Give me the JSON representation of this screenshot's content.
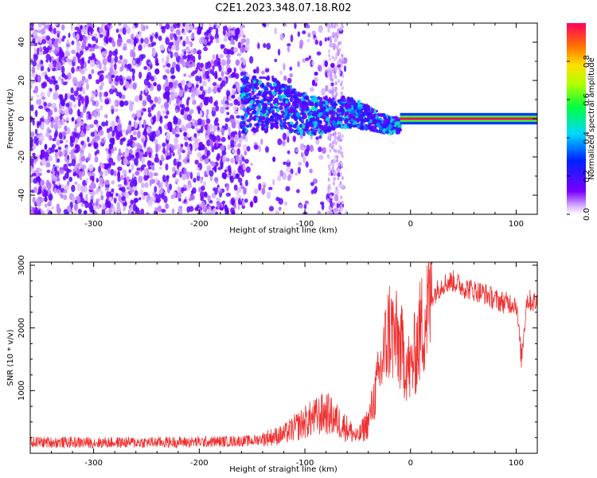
{
  "figure_title": "C2E1.2023.348.07.18.R02",
  "colors": {
    "spectrogram_low": "#7a00ff",
    "trace": "#ef2f2f",
    "axes": "#000000"
  },
  "chart_data": [
    {
      "type": "heatmap",
      "xlabel": "Height of straight line (km)",
      "ylabel": "Frequency (Hz)",
      "xlim": [
        -360,
        120
      ],
      "ylim": [
        -50,
        50
      ],
      "xticks": [
        -300,
        -200,
        -100,
        0,
        100
      ],
      "xtick_labels": [
        "-300",
        "-200",
        "-100",
        "0",
        "100"
      ],
      "yticks": [
        -40,
        -20,
        0,
        20,
        40
      ],
      "ytick_labels": [
        "-40",
        "-20",
        "0",
        "20",
        "40"
      ],
      "colorbar": {
        "label": "Normalized spectral amplitude",
        "range": [
          0,
          1
        ],
        "ticks": [
          0.0,
          0.2,
          0.4,
          0.6,
          0.8
        ],
        "tick_labels": [
          "0.0",
          "0.2",
          "0.4",
          "0.6",
          "0.8"
        ],
        "colormap": "rainbow"
      },
      "regions": [
        {
          "x": [
            -360,
            -160
          ],
          "freq": [
            -50,
            50
          ],
          "amplitude": 0.1,
          "description": "broadband noise"
        },
        {
          "x": [
            -160,
            -10
          ],
          "freq": [
            -15,
            15
          ],
          "amplitude": 0.35,
          "description": "narrowing signal"
        },
        {
          "x": [
            -10,
            120
          ],
          "freq": [
            -1,
            1
          ],
          "amplitude": 1.0,
          "description": "steady carrier"
        }
      ]
    },
    {
      "type": "line",
      "xlabel": "Height of straight line (km)",
      "ylabel": "SNR (10 * v/v)",
      "xlim": [
        -360,
        120
      ],
      "ylim": [
        0,
        3050
      ],
      "xticks": [
        -300,
        -200,
        -100,
        0,
        100
      ],
      "xtick_labels": [
        "-300",
        "-200",
        "-100",
        "0",
        "100"
      ],
      "yticks": [
        1000,
        2000,
        3000
      ],
      "ytick_labels": [
        "1000",
        "2000",
        "3000"
      ],
      "series": [
        {
          "x": [
            -360,
            -300,
            -200,
            -150,
            -120,
            -100,
            -80,
            -60,
            -50,
            -40,
            -30,
            -20,
            -10,
            0,
            10,
            20,
            30,
            40,
            50,
            60,
            70,
            80,
            90,
            100,
            105,
            110,
            120
          ],
          "y": [
            180,
            170,
            180,
            200,
            300,
            500,
            650,
            400,
            250,
            500,
            1200,
            2000,
            1700,
            1300,
            2000,
            2500,
            2700,
            2750,
            2650,
            2600,
            2550,
            2450,
            2400,
            2400,
            1500,
            2450,
            2400
          ]
        }
      ]
    }
  ]
}
